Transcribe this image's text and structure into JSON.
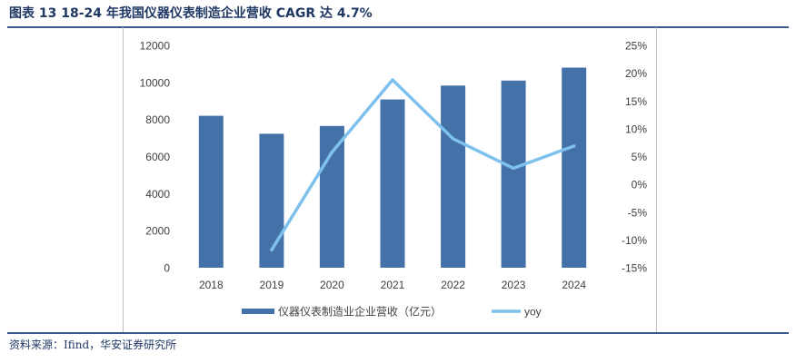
{
  "figure": {
    "title": "图表 13  18-24 年我国仪器仪表制造企业营收 CAGR 达 4.7%",
    "source": "资料来源：Ifind，华安证券研究所"
  },
  "colors": {
    "bar": "#4472A8",
    "line": "#7EC1ED",
    "title": "#1F3864",
    "rule": "#3C5A8C",
    "tick": "#404040"
  },
  "chart_data": {
    "type": "bar",
    "categories": [
      "2018",
      "2019",
      "2020",
      "2021",
      "2022",
      "2023",
      "2024"
    ],
    "series": [
      {
        "name": "仪器仪表制造业企业营收（亿元）",
        "type": "bar",
        "axis": "left",
        "values": [
          8200,
          7230,
          7650,
          9080,
          9830,
          10100,
          10800
        ]
      },
      {
        "name": "yoy",
        "type": "line",
        "axis": "right",
        "values": [
          null,
          -11.8,
          5.8,
          18.8,
          8.2,
          2.9,
          6.9
        ]
      }
    ],
    "y_left": {
      "min": 0,
      "max": 12000,
      "step": 2000,
      "ticks": [
        "0",
        "2000",
        "4000",
        "6000",
        "8000",
        "10000",
        "12000"
      ]
    },
    "y_right": {
      "min": -15,
      "max": 25,
      "step": 5,
      "ticks": [
        "-15%",
        "-10%",
        "-5%",
        "0%",
        "5%",
        "10%",
        "15%",
        "20%",
        "25%"
      ]
    },
    "grid": false,
    "legend_position": "bottom"
  }
}
